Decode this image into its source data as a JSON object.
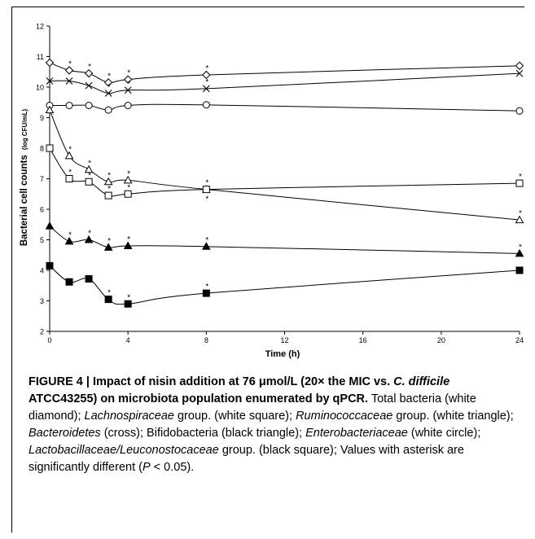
{
  "chart_data": {
    "type": "line",
    "ylabel_main": "Bacterial cell counts",
    "ylabel_unit": "(log CFU/mL)",
    "xlabel": "Time (h)",
    "xlim": [
      0,
      24
    ],
    "ylim": [
      2,
      12
    ],
    "x_ticks": [
      "0",
      "4",
      "8",
      "12",
      "16",
      "20",
      "24"
    ],
    "y_ticks": [
      "2",
      "3",
      "4",
      "5",
      "6",
      "7",
      "8",
      "9",
      "10",
      "11",
      "12"
    ],
    "grid": false,
    "series": [
      {
        "marker": "diamond-open",
        "x": [
          0,
          1,
          2,
          3,
          4,
          8,
          24
        ],
        "y": [
          10.8,
          10.55,
          10.45,
          10.15,
          10.25,
          10.4,
          10.7
        ],
        "sig": [
          false,
          true,
          true,
          true,
          true,
          true,
          false
        ]
      },
      {
        "marker": "cross",
        "x": [
          0,
          1,
          2,
          3,
          4,
          8,
          24
        ],
        "y": [
          10.2,
          10.2,
          10.05,
          9.8,
          9.9,
          9.95,
          10.45
        ],
        "sig": [
          false,
          false,
          false,
          true,
          true,
          true,
          false
        ]
      },
      {
        "marker": "circle-open",
        "x": [
          0,
          1,
          2,
          3,
          4,
          8,
          24
        ],
        "y": [
          9.4,
          9.4,
          9.4,
          9.25,
          9.4,
          9.42,
          9.22
        ],
        "sig": [
          false,
          false,
          false,
          false,
          false,
          false,
          false
        ]
      },
      {
        "marker": "triangle-open",
        "x": [
          0,
          1,
          2,
          3,
          4,
          8,
          24
        ],
        "y": [
          9.25,
          7.75,
          7.3,
          6.9,
          6.95,
          6.65,
          5.65
        ],
        "sig": [
          false,
          true,
          true,
          true,
          true,
          true,
          true
        ]
      },
      {
        "marker": "square-open",
        "x": [
          0,
          1,
          2,
          3,
          4,
          8,
          24
        ],
        "y": [
          8.0,
          7.0,
          6.9,
          6.45,
          6.5,
          6.65,
          6.85
        ],
        "sig": [
          false,
          true,
          true,
          true,
          true,
          true,
          true
        ]
      },
      {
        "marker": "triangle-filled",
        "x": [
          0,
          1,
          2,
          3,
          4,
          8,
          24
        ],
        "y": [
          5.45,
          4.95,
          5.0,
          4.75,
          4.8,
          4.78,
          4.55
        ],
        "sig": [
          false,
          true,
          true,
          true,
          true,
          true,
          true
        ]
      },
      {
        "marker": "square-filled",
        "x": [
          0,
          1,
          2,
          3,
          4,
          8,
          24
        ],
        "y": [
          4.15,
          3.62,
          3.72,
          3.05,
          2.9,
          3.25,
          4.0
        ],
        "sig": [
          false,
          false,
          false,
          true,
          true,
          true,
          false
        ]
      }
    ],
    "sig_symbol": "*"
  },
  "caption": {
    "label": "FIGURE 4 | ",
    "title_pre": "Impact of nisin addition at 76 μmol/L (20× the MIC vs. ",
    "title_italic": "C. difficile",
    "title_post": " ATCC43255) on microbiota population enumerated by qPCR.",
    "body": [
      {
        "t": " Total bacteria (white diamond); ",
        "i": false
      },
      {
        "t": "Lachnospiraceae",
        "i": true
      },
      {
        "t": " group. (white square); ",
        "i": false
      },
      {
        "t": "Ruminococcaceae",
        "i": true
      },
      {
        "t": " group. (white triangle); ",
        "i": false
      },
      {
        "t": "Bacteroidetes",
        "i": true
      },
      {
        "t": " (cross); Bifidobacteria (black triangle); ",
        "i": false
      },
      {
        "t": "Enterobacteriaceae",
        "i": true
      },
      {
        "t": " (white circle); ",
        "i": false
      },
      {
        "t": "Lactobacillaceae/Leuconostocaceae",
        "i": true
      },
      {
        "t": " group. (black square); Values with asterisk are significantly different (",
        "i": false
      },
      {
        "t": "P",
        "i": true
      },
      {
        "t": " < 0.05).",
        "i": false
      }
    ]
  }
}
